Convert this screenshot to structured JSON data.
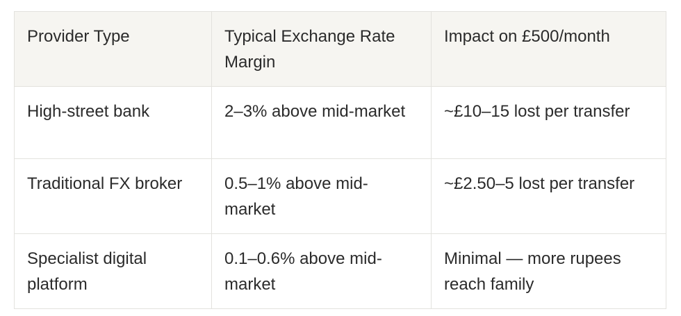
{
  "table": {
    "header": [
      "Provider Type",
      "Typical Exchange Rate Margin",
      "Impact on £500/month"
    ],
    "rows": [
      [
        "High-street bank",
        "2–3% above mid-market",
        "~£10–15 lost per transfer"
      ],
      [
        "Traditional FX broker",
        "0.5–1% above mid-market",
        "~£2.50–5 lost per transfer"
      ],
      [
        "Specialist digital platform",
        "0.1–0.6% above mid-market",
        "Minimal — more rupees reach family"
      ]
    ]
  }
}
